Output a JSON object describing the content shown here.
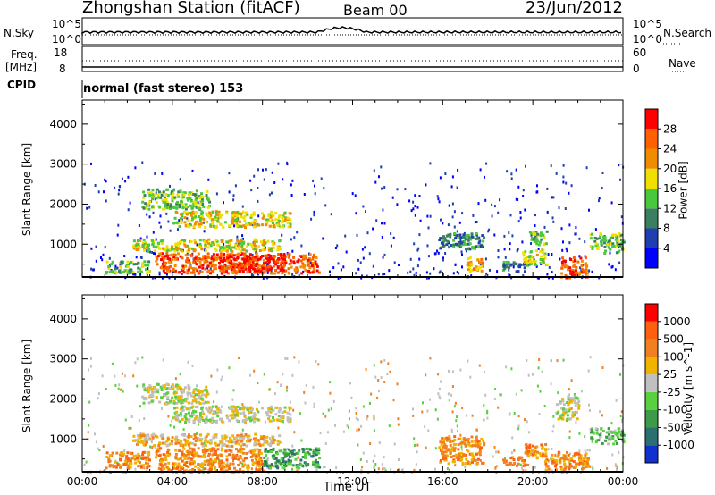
{
  "header": {
    "station": "Zhongshan Station (fitACF)",
    "beam": "Beam 00",
    "date": "23/Jun/2012"
  },
  "mode_text": "normal (fast stereo) 153",
  "side_labels": {
    "nsky": "N.Sky",
    "nsearch": "N.Search",
    "freq1": "Freq.",
    "freq2": "[MHz]",
    "cpid": "CPID",
    "nave": "Nave"
  },
  "strip_ticks": {
    "nsky_left": [
      "10^5",
      "10^0"
    ],
    "nsearch_right": [
      "10^5",
      "10^0"
    ],
    "freq_left": [
      "18",
      "8"
    ],
    "nave_right": [
      "60",
      "0"
    ]
  },
  "chart_data": [
    {
      "type": "heatmap",
      "name": "power-panel",
      "ylabel": "Slant Range [km]",
      "ylim": [
        180,
        4600
      ],
      "yticks": [
        1000,
        2000,
        3000,
        4000
      ],
      "xlim": [
        0,
        24
      ],
      "colorbar": {
        "label": "Power [dB]",
        "ticks": [
          "4",
          "8",
          "12",
          "16",
          "20",
          "24",
          "28"
        ],
        "colors": [
          "#0000ff",
          "#1f3fb0",
          "#3a8060",
          "#48c83c",
          "#f0e000",
          "#f08c00",
          "#ff6000",
          "#ff0000"
        ]
      },
      "regions": [
        {
          "t0": 2.6,
          "t1": 5.6,
          "r0": 1900,
          "r1": 2400,
          "level": 3
        },
        {
          "t0": 4.0,
          "t1": 9.2,
          "r0": 1450,
          "r1": 1850,
          "level": 4
        },
        {
          "t0": 2.2,
          "t1": 8.8,
          "r0": 850,
          "r1": 1150,
          "level": 4
        },
        {
          "t0": 3.2,
          "t1": 10.5,
          "r0": 300,
          "r1": 800,
          "level": 6
        },
        {
          "t0": 6.0,
          "t1": 9.0,
          "r0": 350,
          "r1": 750,
          "level": 7
        },
        {
          "t0": 1.0,
          "t1": 3.0,
          "r0": 300,
          "r1": 600,
          "level": 3
        },
        {
          "t0": 15.8,
          "t1": 17.8,
          "r0": 900,
          "r1": 1300,
          "level": 2
        },
        {
          "t0": 17.0,
          "t1": 17.8,
          "r0": 350,
          "r1": 700,
          "level": 5
        },
        {
          "t0": 18.6,
          "t1": 19.8,
          "r0": 350,
          "r1": 600,
          "level": 2
        },
        {
          "t0": 19.5,
          "t1": 20.6,
          "r0": 500,
          "r1": 900,
          "level": 4
        },
        {
          "t0": 19.8,
          "t1": 20.6,
          "r0": 1000,
          "r1": 1350,
          "level": 3
        },
        {
          "t0": 21.2,
          "t1": 22.4,
          "r0": 200,
          "r1": 700,
          "level": 6
        },
        {
          "t0": 21.4,
          "t1": 21.9,
          "r0": 180,
          "r1": 320,
          "level": 7
        },
        {
          "t0": 22.5,
          "t1": 24.0,
          "r0": 800,
          "r1": 1300,
          "level": 3
        }
      ]
    },
    {
      "type": "heatmap",
      "name": "velocity-panel",
      "ylabel": "Slant Range [km]",
      "ylim": [
        180,
        4600
      ],
      "yticks": [
        1000,
        2000,
        3000,
        4000
      ],
      "xlim": [
        0,
        24
      ],
      "xlabel": "Time UT",
      "xticks": [
        "00:00",
        "04:00",
        "08:00",
        "12:00",
        "16:00",
        "20:00",
        "00:00"
      ],
      "colorbar": {
        "label": "Velocity [m s^-1]",
        "ticks": [
          "1000",
          "500",
          "100",
          "25",
          "-25",
          "-100",
          "-500",
          "-1000"
        ],
        "colors": [
          "#1030d0",
          "#2a7070",
          "#3c9a48",
          "#58d040",
          "#c0c0c0",
          "#f0b400",
          "#f08020",
          "#ff6010",
          "#ff0000"
        ]
      },
      "regions": [
        {
          "t0": 2.6,
          "t1": 5.6,
          "r0": 1900,
          "r1": 2400,
          "level": 4
        },
        {
          "t0": 4.0,
          "t1": 9.2,
          "r0": 1450,
          "r1": 1850,
          "level": 4
        },
        {
          "t0": 2.2,
          "t1": 8.8,
          "r0": 850,
          "r1": 1150,
          "level": 5
        },
        {
          "t0": 3.2,
          "t1": 8.0,
          "r0": 200,
          "r1": 800,
          "level": 6
        },
        {
          "t0": 8.0,
          "t1": 10.5,
          "r0": 300,
          "r1": 800,
          "level": 2
        },
        {
          "t0": 1.0,
          "t1": 3.0,
          "r0": 300,
          "r1": 700,
          "level": 6
        },
        {
          "t0": 15.8,
          "t1": 17.8,
          "r0": 400,
          "r1": 1100,
          "level": 6
        },
        {
          "t0": 18.6,
          "t1": 19.8,
          "r0": 350,
          "r1": 600,
          "level": 6
        },
        {
          "t0": 19.6,
          "t1": 20.6,
          "r0": 500,
          "r1": 900,
          "level": 6
        },
        {
          "t0": 20.5,
          "t1": 22.5,
          "r0": 250,
          "r1": 700,
          "level": 6
        },
        {
          "t0": 22.5,
          "t1": 24.0,
          "r0": 900,
          "r1": 1300,
          "level": 3
        },
        {
          "t0": 21.0,
          "t1": 22.0,
          "r0": 1500,
          "r1": 2100,
          "level": 4
        }
      ]
    }
  ]
}
